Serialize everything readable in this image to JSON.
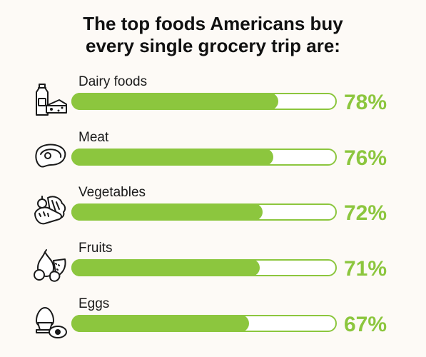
{
  "chart_data": {
    "type": "bar",
    "title_lines": [
      "The top foods Americans buy",
      "every single grocery trip are:"
    ],
    "categories": [
      "Dairy foods",
      "Meat",
      "Vegetables",
      "Fruits",
      "Eggs"
    ],
    "values": [
      78,
      76,
      72,
      71,
      67
    ],
    "value_labels": [
      "78%",
      "76%",
      "72%",
      "71%",
      "67%"
    ],
    "icons": [
      "milk-cheese-icon",
      "steak-icon",
      "vegetables-icon",
      "fruits-icon",
      "egg-icon"
    ],
    "xlim": [
      0,
      100
    ],
    "orientation": "horizontal",
    "colors": {
      "bar": "#8cc63e",
      "value_text": "#8cc63e",
      "background": "#fdfaf6"
    }
  }
}
